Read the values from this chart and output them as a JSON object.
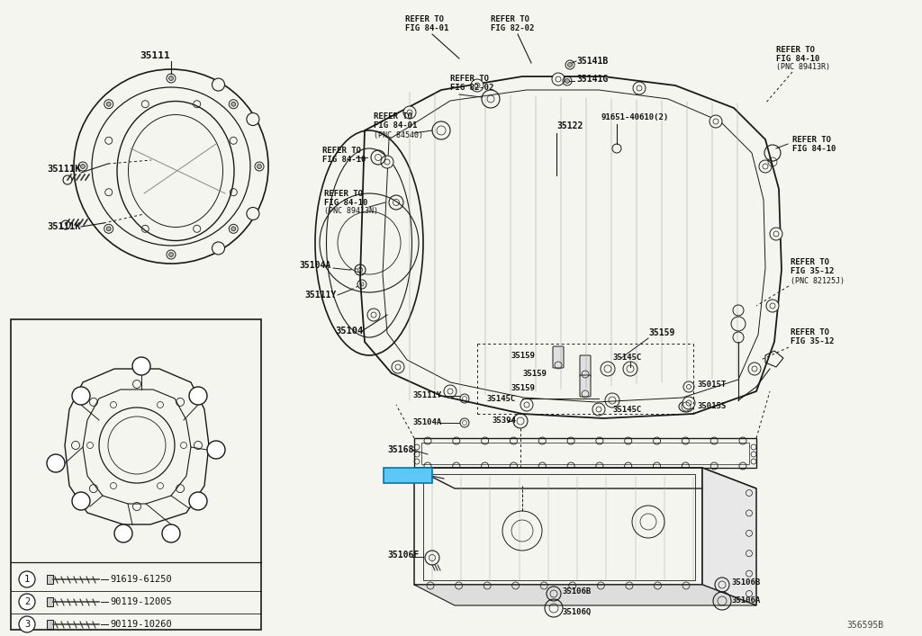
{
  "bg_color": "#f5f5f0",
  "line_color": "#1a1a1a",
  "text_color": "#111111",
  "fig_width": 10.24,
  "fig_height": 7.07,
  "dpi": 100,
  "diagram_id": "356595B",
  "legend_items": [
    {
      "num": "1",
      "part_num": "91619-61250"
    },
    {
      "num": "2",
      "part_num": "90119-12005"
    },
    {
      "num": "3",
      "part_num": "90119-10260"
    }
  ]
}
